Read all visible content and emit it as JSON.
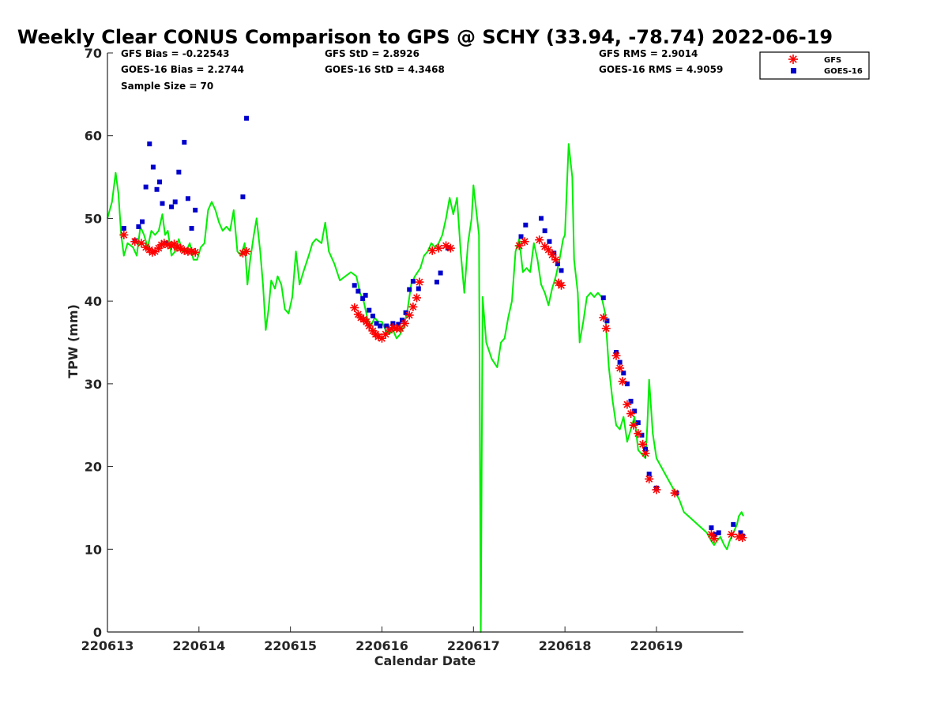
{
  "chart_data": {
    "type": "scatter",
    "title": "Weekly Clear CONUS Comparison to GPS @ SCHY (33.94, -78.74) 2022-06-19",
    "xlabel": "Calendar Date",
    "ylabel": "TPW (mm)",
    "xlim": [
      0,
      6.95
    ],
    "ylim": [
      0,
      70
    ],
    "x_ticks": [
      0,
      1,
      2,
      3,
      4,
      5,
      6
    ],
    "x_tick_labels": [
      "220613",
      "220614",
      "220615",
      "220616",
      "220617",
      "220618",
      "220619"
    ],
    "y_ticks": [
      0,
      10,
      20,
      30,
      40,
      50,
      60,
      70
    ],
    "grid": false,
    "legend_position": "top-right",
    "stats": {
      "gfs_bias": "GFS Bias = -0.22543",
      "goes_bias": "GOES-16 Bias = 2.2744",
      "sample": "Sample Size = 70",
      "gfs_std": "GFS StD = 2.8926",
      "goes_std": "GOES-16 StD = 4.3468",
      "gfs_rms": "GFS RMS = 2.9014",
      "goes_rms": "GOES-16 RMS = 4.9059"
    },
    "series": [
      {
        "name": "GFS",
        "kind": "scatter-asterisk",
        "color": "#ff0000",
        "points": [
          [
            0.18,
            48
          ],
          [
            0.3,
            47.2
          ],
          [
            0.37,
            47
          ],
          [
            0.42,
            46.5
          ],
          [
            0.46,
            46.2
          ],
          [
            0.49,
            45.9
          ],
          [
            0.52,
            46
          ],
          [
            0.56,
            46.4
          ],
          [
            0.59,
            46.8
          ],
          [
            0.62,
            47
          ],
          [
            0.66,
            46.8
          ],
          [
            0.7,
            46.7
          ],
          [
            0.73,
            46.9
          ],
          [
            0.76,
            46.5
          ],
          [
            0.8,
            46.4
          ],
          [
            0.84,
            46.1
          ],
          [
            0.88,
            46
          ],
          [
            0.92,
            46
          ],
          [
            0.96,
            45.9
          ],
          [
            1.48,
            45.8
          ],
          [
            1.52,
            46
          ],
          [
            2.7,
            39.2
          ],
          [
            2.74,
            38.4
          ],
          [
            2.77,
            38
          ],
          [
            2.8,
            37.8
          ],
          [
            2.83,
            37.5
          ],
          [
            2.86,
            37
          ],
          [
            2.9,
            36.4
          ],
          [
            2.93,
            36
          ],
          [
            2.96,
            35.7
          ],
          [
            3.0,
            35.5
          ],
          [
            3.04,
            36
          ],
          [
            3.08,
            36.5
          ],
          [
            3.12,
            36.8
          ],
          [
            3.16,
            36.7
          ],
          [
            3.2,
            36.7
          ],
          [
            3.25,
            37.3
          ],
          [
            3.3,
            38.3
          ],
          [
            3.34,
            39.3
          ],
          [
            3.38,
            40.4
          ],
          [
            3.41,
            42.3
          ],
          [
            3.55,
            46.1
          ],
          [
            3.62,
            46.4
          ],
          [
            3.7,
            46.7
          ],
          [
            3.75,
            46.4
          ],
          [
            4.5,
            46.7
          ],
          [
            4.56,
            47.2
          ],
          [
            4.72,
            47.4
          ],
          [
            4.78,
            46.6
          ],
          [
            4.82,
            46.2
          ],
          [
            4.86,
            45.6
          ],
          [
            4.9,
            45
          ],
          [
            4.93,
            42.2
          ],
          [
            4.96,
            41.9
          ],
          [
            5.42,
            38
          ],
          [
            5.45,
            36.7
          ],
          [
            5.56,
            33.4
          ],
          [
            5.6,
            31.9
          ],
          [
            5.63,
            30.3
          ],
          [
            5.68,
            27.5
          ],
          [
            5.72,
            26.4
          ],
          [
            5.75,
            25
          ],
          [
            5.8,
            24
          ],
          [
            5.85,
            22.7
          ],
          [
            5.88,
            21.6
          ],
          [
            5.92,
            18.5
          ],
          [
            6.0,
            17.2
          ],
          [
            6.2,
            16.8
          ],
          [
            6.6,
            11.8
          ],
          [
            6.63,
            11.3
          ],
          [
            6.82,
            11.8
          ],
          [
            6.9,
            11.5
          ],
          [
            6.94,
            11.4
          ]
        ]
      },
      {
        "name": "GOES-16",
        "kind": "scatter-square",
        "color": "#0000cc",
        "points": [
          [
            0.18,
            48.8
          ],
          [
            0.3,
            47.3
          ],
          [
            0.34,
            49
          ],
          [
            0.38,
            49.6
          ],
          [
            0.42,
            53.8
          ],
          [
            0.46,
            59
          ],
          [
            0.5,
            56.2
          ],
          [
            0.54,
            53.5
          ],
          [
            0.57,
            54.4
          ],
          [
            0.6,
            51.8
          ],
          [
            0.64,
            47
          ],
          [
            0.7,
            51.4
          ],
          [
            0.74,
            52
          ],
          [
            0.78,
            55.6
          ],
          [
            0.84,
            59.2
          ],
          [
            0.88,
            52.4
          ],
          [
            0.92,
            48.8
          ],
          [
            0.96,
            51
          ],
          [
            1.48,
            52.6
          ],
          [
            1.52,
            62.1
          ],
          [
            2.7,
            41.9
          ],
          [
            2.74,
            41.2
          ],
          [
            2.79,
            40.3
          ],
          [
            2.82,
            40.7
          ],
          [
            2.86,
            38.9
          ],
          [
            2.9,
            38.2
          ],
          [
            2.94,
            37.3
          ],
          [
            2.98,
            37
          ],
          [
            3.05,
            37
          ],
          [
            3.12,
            37.3
          ],
          [
            3.18,
            37.2
          ],
          [
            3.22,
            37.7
          ],
          [
            3.26,
            38.6
          ],
          [
            3.3,
            41.4
          ],
          [
            3.34,
            42.4
          ],
          [
            3.4,
            41.5
          ],
          [
            3.6,
            42.3
          ],
          [
            3.64,
            43.4
          ],
          [
            3.72,
            46.4
          ],
          [
            4.52,
            47.8
          ],
          [
            4.57,
            49.2
          ],
          [
            4.74,
            50
          ],
          [
            4.78,
            48.5
          ],
          [
            4.83,
            47.2
          ],
          [
            4.88,
            45.8
          ],
          [
            4.92,
            44.5
          ],
          [
            4.96,
            43.7
          ],
          [
            5.42,
            40.4
          ],
          [
            5.46,
            37.6
          ],
          [
            5.56,
            33.8
          ],
          [
            5.6,
            32.6
          ],
          [
            5.64,
            31.3
          ],
          [
            5.68,
            30
          ],
          [
            5.72,
            27.9
          ],
          [
            5.76,
            26.7
          ],
          [
            5.8,
            25.3
          ],
          [
            5.84,
            23.8
          ],
          [
            5.88,
            22.1
          ],
          [
            5.92,
            19.1
          ],
          [
            6.0,
            17.4
          ],
          [
            6.22,
            16.8
          ],
          [
            6.6,
            12.6
          ],
          [
            6.64,
            11.8
          ],
          [
            6.68,
            12
          ],
          [
            6.84,
            13
          ],
          [
            6.92,
            12
          ],
          [
            6.94,
            11.6
          ]
        ]
      },
      {
        "name": "GPS",
        "kind": "line",
        "color": "#00ee00",
        "points": [
          [
            0,
            50
          ],
          [
            0.05,
            52
          ],
          [
            0.09,
            55.5
          ],
          [
            0.12,
            53
          ],
          [
            0.15,
            48
          ],
          [
            0.18,
            45.5
          ],
          [
            0.22,
            47
          ],
          [
            0.28,
            46.5
          ],
          [
            0.32,
            45.5
          ],
          [
            0.36,
            49
          ],
          [
            0.4,
            48
          ],
          [
            0.44,
            46.5
          ],
          [
            0.48,
            48.5
          ],
          [
            0.52,
            48
          ],
          [
            0.56,
            48.5
          ],
          [
            0.6,
            50.5
          ],
          [
            0.63,
            48
          ],
          [
            0.66,
            48.5
          ],
          [
            0.7,
            45.5
          ],
          [
            0.74,
            46
          ],
          [
            0.78,
            47.5
          ],
          [
            0.82,
            46
          ],
          [
            0.86,
            46
          ],
          [
            0.9,
            47
          ],
          [
            0.94,
            45
          ],
          [
            0.98,
            45
          ],
          [
            1.02,
            46.5
          ],
          [
            1.06,
            47
          ],
          [
            1.1,
            51
          ],
          [
            1.14,
            52
          ],
          [
            1.18,
            51
          ],
          [
            1.22,
            49.5
          ],
          [
            1.26,
            48.5
          ],
          [
            1.3,
            49
          ],
          [
            1.34,
            48.5
          ],
          [
            1.38,
            51
          ],
          [
            1.42,
            46
          ],
          [
            1.46,
            45.5
          ],
          [
            1.5,
            47
          ],
          [
            1.53,
            42
          ],
          [
            1.56,
            45
          ],
          [
            1.6,
            48
          ],
          [
            1.63,
            50
          ],
          [
            1.67,
            46
          ],
          [
            1.7,
            42
          ],
          [
            1.73,
            36.5
          ],
          [
            1.76,
            39
          ],
          [
            1.79,
            42.5
          ],
          [
            1.83,
            41.5
          ],
          [
            1.86,
            43
          ],
          [
            1.9,
            42
          ],
          [
            1.94,
            39
          ],
          [
            1.98,
            38.5
          ],
          [
            2.02,
            40.5
          ],
          [
            2.06,
            46
          ],
          [
            2.1,
            42
          ],
          [
            2.14,
            43.5
          ],
          [
            2.2,
            45.5
          ],
          [
            2.24,
            47
          ],
          [
            2.28,
            47.5
          ],
          [
            2.34,
            47
          ],
          [
            2.38,
            49.5
          ],
          [
            2.42,
            46
          ],
          [
            2.48,
            44.5
          ],
          [
            2.54,
            42.5
          ],
          [
            2.6,
            43
          ],
          [
            2.66,
            43.5
          ],
          [
            2.72,
            43
          ],
          [
            2.76,
            41
          ],
          [
            2.8,
            40
          ],
          [
            2.84,
            38
          ],
          [
            2.88,
            37
          ],
          [
            2.92,
            38
          ],
          [
            2.96,
            37.5
          ],
          [
            3.0,
            37.5
          ],
          [
            3.04,
            36.5
          ],
          [
            3.08,
            36
          ],
          [
            3.12,
            36.5
          ],
          [
            3.16,
            35.5
          ],
          [
            3.2,
            36
          ],
          [
            3.24,
            37
          ],
          [
            3.28,
            39
          ],
          [
            3.32,
            42
          ],
          [
            3.36,
            43
          ],
          [
            3.42,
            44
          ],
          [
            3.46,
            45.5
          ],
          [
            3.5,
            46
          ],
          [
            3.54,
            47
          ],
          [
            3.58,
            46.5
          ],
          [
            3.62,
            47
          ],
          [
            3.66,
            48
          ],
          [
            3.7,
            50
          ],
          [
            3.74,
            52.5
          ],
          [
            3.78,
            50.5
          ],
          [
            3.82,
            52.5
          ],
          [
            3.86,
            46
          ],
          [
            3.9,
            41
          ],
          [
            3.94,
            47
          ],
          [
            3.98,
            50
          ],
          [
            4.0,
            54
          ],
          [
            4.03,
            51
          ],
          [
            4.06,
            48
          ],
          [
            4.08,
            0
          ],
          [
            4.1,
            40.5
          ],
          [
            4.14,
            35
          ],
          [
            4.2,
            33
          ],
          [
            4.26,
            32
          ],
          [
            4.3,
            35
          ],
          [
            4.34,
            35.5
          ],
          [
            4.38,
            38
          ],
          [
            4.42,
            40
          ],
          [
            4.46,
            46
          ],
          [
            4.5,
            47.5
          ],
          [
            4.54,
            43.5
          ],
          [
            4.58,
            44
          ],
          [
            4.62,
            43.5
          ],
          [
            4.66,
            47
          ],
          [
            4.7,
            45
          ],
          [
            4.74,
            42
          ],
          [
            4.78,
            41
          ],
          [
            4.82,
            39.5
          ],
          [
            4.86,
            41.5
          ],
          [
            4.9,
            43
          ],
          [
            4.94,
            45
          ],
          [
            4.98,
            47.5
          ],
          [
            5.0,
            48
          ],
          [
            5.04,
            59
          ],
          [
            5.08,
            55
          ],
          [
            5.1,
            45
          ],
          [
            5.14,
            41
          ],
          [
            5.16,
            35
          ],
          [
            5.2,
            37.5
          ],
          [
            5.24,
            40.5
          ],
          [
            5.28,
            41
          ],
          [
            5.32,
            40.5
          ],
          [
            5.36,
            41
          ],
          [
            5.4,
            40.5
          ],
          [
            5.44,
            38.5
          ],
          [
            5.48,
            32
          ],
          [
            5.52,
            28
          ],
          [
            5.56,
            25
          ],
          [
            5.6,
            24.5
          ],
          [
            5.64,
            26
          ],
          [
            5.68,
            23
          ],
          [
            5.72,
            24.5
          ],
          [
            5.76,
            26
          ],
          [
            5.8,
            22
          ],
          [
            5.84,
            21.5
          ],
          [
            5.88,
            21
          ],
          [
            5.9,
            25
          ],
          [
            5.92,
            30.5
          ],
          [
            5.96,
            24
          ],
          [
            6.0,
            21
          ],
          [
            6.05,
            20
          ],
          [
            6.1,
            19
          ],
          [
            6.15,
            18
          ],
          [
            6.2,
            17
          ],
          [
            6.25,
            16
          ],
          [
            6.3,
            14.5
          ],
          [
            6.35,
            14
          ],
          [
            6.4,
            13.5
          ],
          [
            6.45,
            13
          ],
          [
            6.5,
            12.5
          ],
          [
            6.55,
            12
          ],
          [
            6.6,
            11
          ],
          [
            6.63,
            10.5
          ],
          [
            6.66,
            11
          ],
          [
            6.7,
            11.5
          ],
          [
            6.74,
            10.5
          ],
          [
            6.77,
            10
          ],
          [
            6.8,
            11
          ],
          [
            6.84,
            12
          ],
          [
            6.88,
            13
          ],
          [
            6.9,
            14
          ],
          [
            6.93,
            14.5
          ],
          [
            6.95,
            14
          ]
        ]
      }
    ]
  }
}
